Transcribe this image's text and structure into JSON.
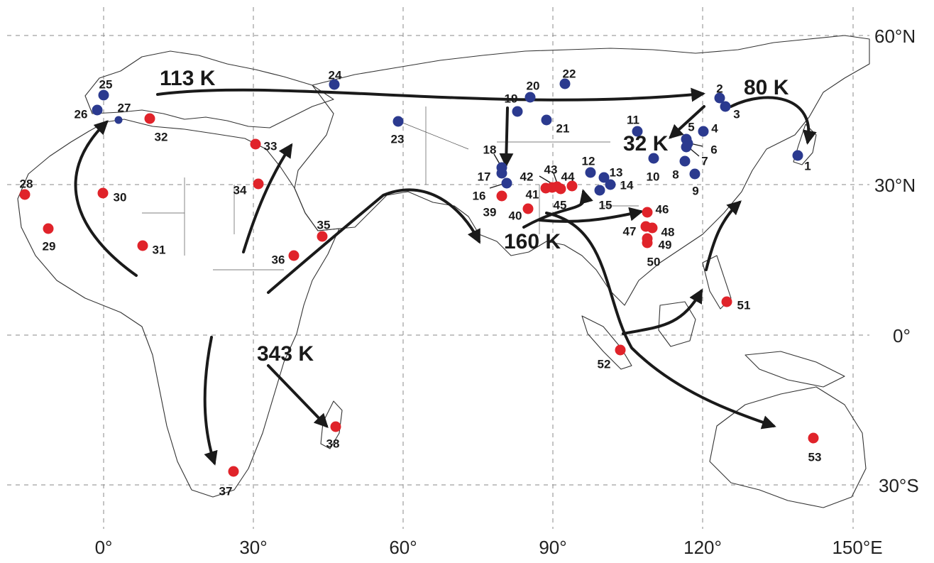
{
  "axes": {
    "lon_ticks": [
      "0°",
      "30°",
      "60°",
      "90°",
      "120°",
      "150°E"
    ],
    "lat_ticks": [
      "60°N",
      "30°N",
      "0°",
      "30°S"
    ]
  },
  "colors": {
    "group_blue": "#2b3a8f",
    "group_red": "#e0232a"
  },
  "age_labels": [
    "113 K",
    "80 K",
    "32 K",
    "160 K",
    "343 K"
  ],
  "sites": [
    {
      "id": "1",
      "group": "blue"
    },
    {
      "id": "2",
      "group": "blue"
    },
    {
      "id": "3",
      "group": "blue"
    },
    {
      "id": "4",
      "group": "blue"
    },
    {
      "id": "5",
      "group": "blue"
    },
    {
      "id": "6",
      "group": "blue"
    },
    {
      "id": "7",
      "group": "blue"
    },
    {
      "id": "8",
      "group": "blue"
    },
    {
      "id": "9",
      "group": "blue"
    },
    {
      "id": "10",
      "group": "blue"
    },
    {
      "id": "11",
      "group": "blue"
    },
    {
      "id": "12",
      "group": "blue"
    },
    {
      "id": "13",
      "group": "blue"
    },
    {
      "id": "14",
      "group": "blue"
    },
    {
      "id": "15",
      "group": "blue"
    },
    {
      "id": "16",
      "group": "blue"
    },
    {
      "id": "17",
      "group": "blue"
    },
    {
      "id": "18",
      "group": "blue"
    },
    {
      "id": "19",
      "group": "blue"
    },
    {
      "id": "20",
      "group": "blue"
    },
    {
      "id": "21",
      "group": "blue"
    },
    {
      "id": "22",
      "group": "blue"
    },
    {
      "id": "23",
      "group": "blue"
    },
    {
      "id": "24",
      "group": "blue"
    },
    {
      "id": "25",
      "group": "blue"
    },
    {
      "id": "26",
      "group": "blue"
    },
    {
      "id": "27",
      "group": "blue"
    },
    {
      "id": "28",
      "group": "red"
    },
    {
      "id": "29",
      "group": "red"
    },
    {
      "id": "30",
      "group": "red"
    },
    {
      "id": "31",
      "group": "red"
    },
    {
      "id": "32",
      "group": "red"
    },
    {
      "id": "33",
      "group": "red"
    },
    {
      "id": "34",
      "group": "red"
    },
    {
      "id": "35",
      "group": "red"
    },
    {
      "id": "36",
      "group": "red"
    },
    {
      "id": "37",
      "group": "red"
    },
    {
      "id": "38",
      "group": "red"
    },
    {
      "id": "39",
      "group": "red"
    },
    {
      "id": "40",
      "group": "red"
    },
    {
      "id": "41",
      "group": "red"
    },
    {
      "id": "42",
      "group": "red"
    },
    {
      "id": "43",
      "group": "red"
    },
    {
      "id": "44",
      "group": "red"
    },
    {
      "id": "45",
      "group": "red"
    },
    {
      "id": "46",
      "group": "red"
    },
    {
      "id": "47",
      "group": "red"
    },
    {
      "id": "48",
      "group": "red"
    },
    {
      "id": "49",
      "group": "red"
    },
    {
      "id": "50",
      "group": "red"
    },
    {
      "id": "51",
      "group": "red"
    },
    {
      "id": "52",
      "group": "red"
    },
    {
      "id": "53",
      "group": "red"
    }
  ]
}
